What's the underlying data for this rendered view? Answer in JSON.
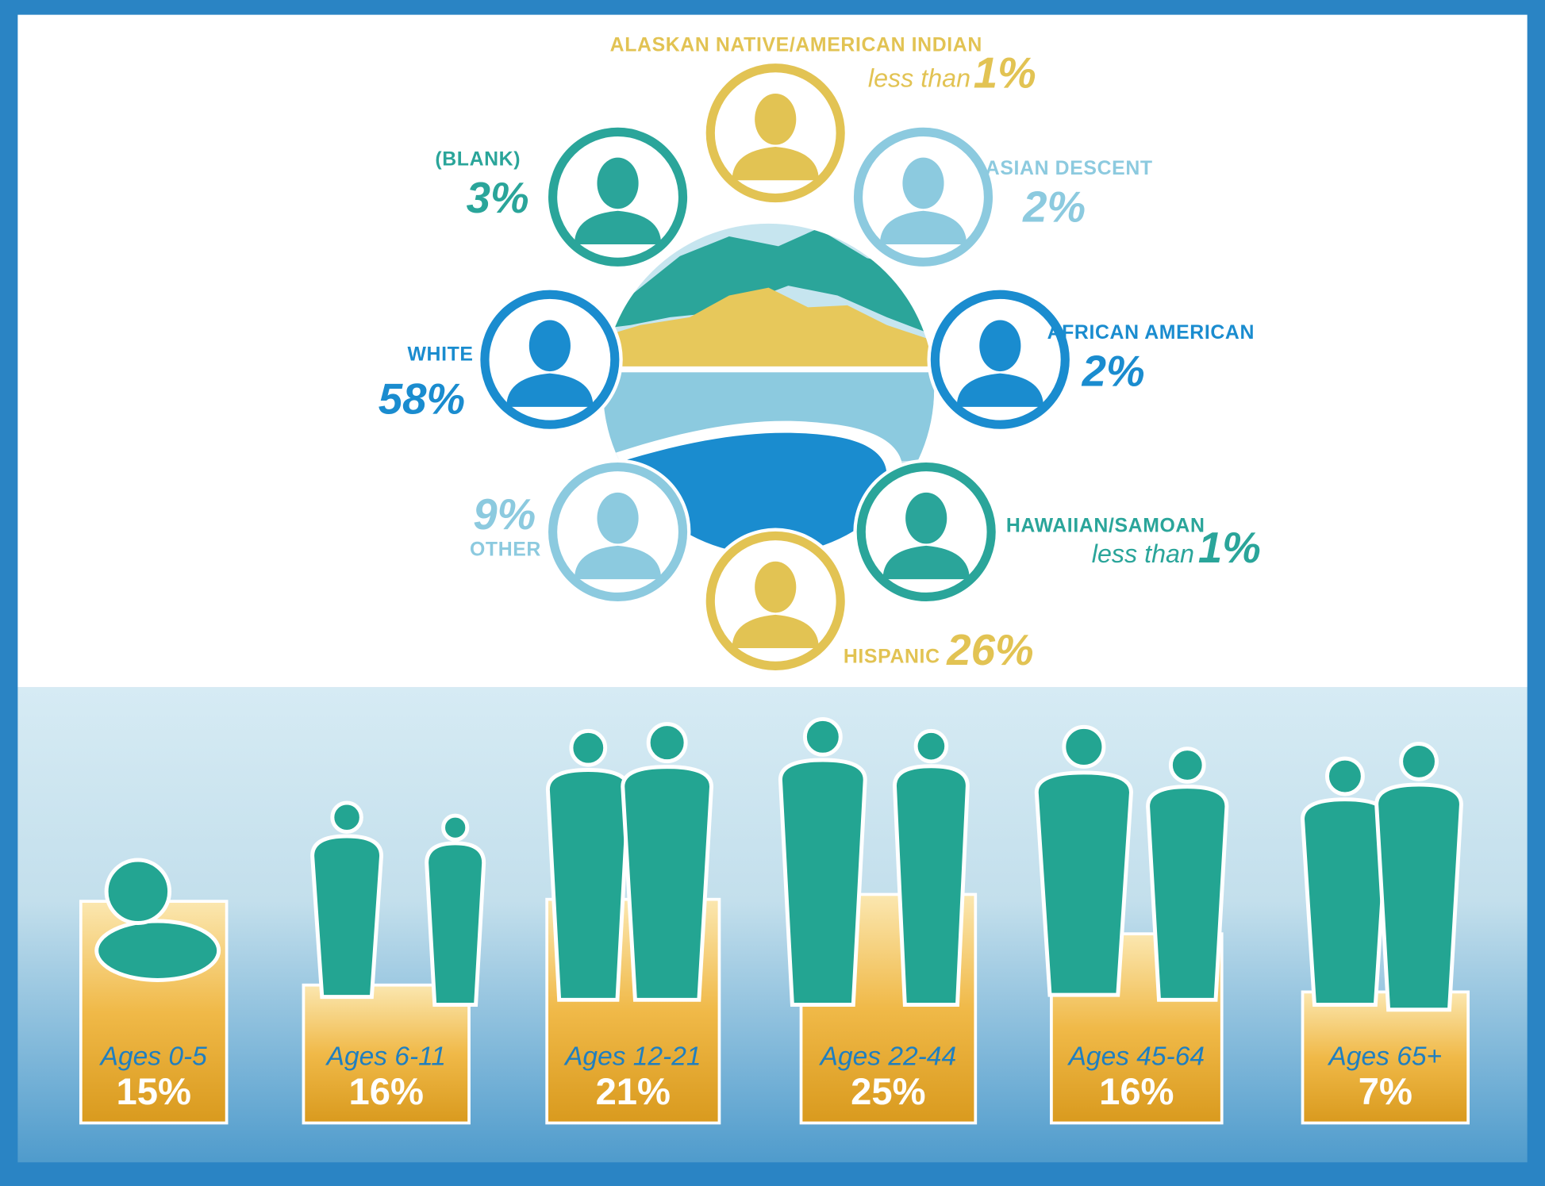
{
  "ethnicity": [
    {
      "name": "ALASKAN NATIVE/AMERICAN INDIAN",
      "qualifier": "less than",
      "percent": "1%"
    },
    {
      "name": "(BLANK)",
      "percent": "3%"
    },
    {
      "name": "ASIAN DESCENT",
      "percent": "2%"
    },
    {
      "name": "WHITE",
      "percent": "58%"
    },
    {
      "name": "AFRICAN AMERICAN",
      "percent": "2%"
    },
    {
      "name": "OTHER",
      "percent": "9%"
    },
    {
      "name": "HAWAIIAN/SAMOAN",
      "qualifier": "less than",
      "percent": "1%"
    },
    {
      "name": "HISPANIC",
      "percent": "26%"
    }
  ],
  "age_groups": [
    {
      "label": "Ages 0-5",
      "percent": "15%"
    },
    {
      "label": "Ages 6-11",
      "percent": "16%"
    },
    {
      "label": "Ages 12-21",
      "percent": "21%"
    },
    {
      "label": "Ages 22-44",
      "percent": "25%"
    },
    {
      "label": "Ages 45-64",
      "percent": "16%"
    },
    {
      "label": "Ages 65+",
      "percent": "7%"
    }
  ]
}
